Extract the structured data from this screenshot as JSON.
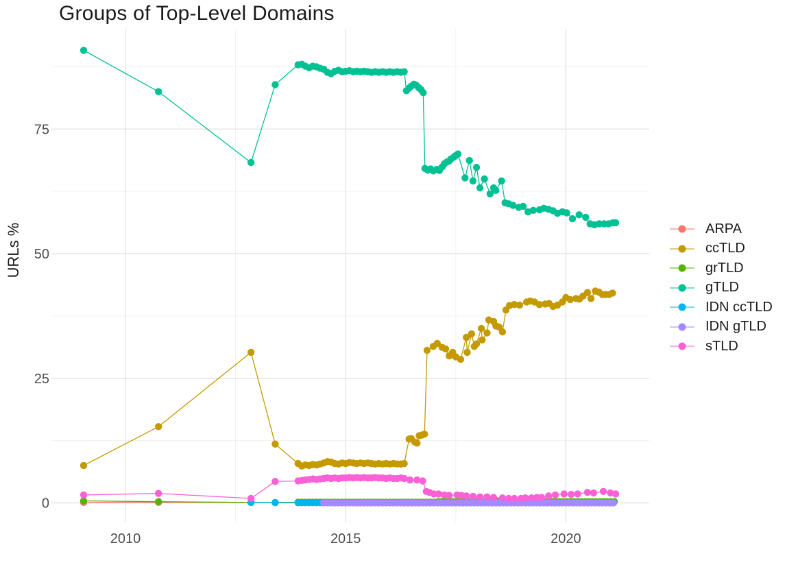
{
  "chart_data": {
    "type": "line",
    "title": "Groups of Top-Level Domains",
    "ylabel": "URLs %",
    "xlabel": "",
    "grid": "on",
    "legend_position": "right",
    "xlim": [
      2008.3,
      2021.9
    ],
    "ylim": [
      -4.5,
      95
    ],
    "x_axis": {
      "ticks": [
        {
          "label": "2010",
          "value": 2010
        },
        {
          "label": "2015",
          "value": 2015
        },
        {
          "label": "2020",
          "value": 2020
        }
      ],
      "minor": [
        2012.5,
        2017.5
      ]
    },
    "y_axis": {
      "ticks": [
        {
          "label": "0",
          "value": 0
        },
        {
          "label": "25",
          "value": 25
        },
        {
          "label": "50",
          "value": 50
        },
        {
          "label": "75",
          "value": 75
        }
      ],
      "minor": [
        12.5,
        37.5,
        62.5,
        87.5
      ]
    },
    "series": [
      {
        "name": "ARPA",
        "color": "#F8766D",
        "points": [
          [
            2009.05,
            0.1
          ],
          [
            2010.75,
            0.1
          ],
          [
            2012.85,
            0.07
          ],
          [
            2013.4,
            0.05
          ]
        ],
        "runs": [
          {
            "from": 2013.92,
            "step": 0.0833,
            "n": 87,
            "value": 0.05
          }
        ]
      },
      {
        "name": "ccTLD",
        "color": "#C49A00",
        "points": [
          [
            2009.05,
            7.5
          ],
          [
            2010.75,
            15.3
          ],
          [
            2012.85,
            30.2
          ],
          [
            2013.4,
            11.8
          ],
          [
            2016.33,
            7.9
          ],
          [
            2016.44,
            12.8
          ],
          [
            2016.49,
            12.9
          ],
          [
            2016.57,
            12.2
          ],
          [
            2016.62,
            12.0
          ],
          [
            2016.67,
            13.5
          ],
          [
            2016.73,
            13.6
          ],
          [
            2016.79,
            13.8
          ],
          [
            2016.85,
            30.6
          ],
          [
            2016.99,
            31.4
          ],
          [
            2017.08,
            32.0
          ],
          [
            2017.19,
            31.2
          ],
          [
            2017.27,
            30.9
          ],
          [
            2017.35,
            29.5
          ],
          [
            2017.43,
            30.2
          ],
          [
            2017.5,
            29.3
          ],
          [
            2017.61,
            28.8
          ],
          [
            2017.74,
            33.2
          ],
          [
            2017.76,
            30.2
          ],
          [
            2017.86,
            33.9
          ],
          [
            2017.92,
            31.4
          ],
          [
            2017.97,
            31.9
          ],
          [
            2018.08,
            35.0
          ],
          [
            2018.1,
            32.7
          ],
          [
            2018.21,
            34.1
          ],
          [
            2018.25,
            36.7
          ],
          [
            2018.36,
            36.4
          ],
          [
            2018.41,
            35.5
          ],
          [
            2018.48,
            35.3
          ],
          [
            2018.56,
            34.3
          ],
          [
            2018.64,
            38.7
          ],
          [
            2018.72,
            39.6
          ],
          [
            2018.83,
            39.8
          ],
          [
            2018.95,
            39.7
          ],
          [
            2019.11,
            40.3
          ],
          [
            2019.19,
            40.5
          ],
          [
            2019.29,
            40.3
          ],
          [
            2019.4,
            39.8
          ],
          [
            2019.53,
            39.9
          ],
          [
            2019.62,
            40.0
          ],
          [
            2019.71,
            39.4
          ],
          [
            2019.81,
            39.7
          ],
          [
            2019.92,
            40.3
          ],
          [
            2020.0,
            41.2
          ],
          [
            2020.1,
            40.8
          ],
          [
            2020.23,
            41.0
          ],
          [
            2020.31,
            40.9
          ],
          [
            2020.39,
            41.5
          ],
          [
            2020.49,
            42.2
          ],
          [
            2020.57,
            41.0
          ],
          [
            2020.67,
            42.5
          ],
          [
            2020.75,
            42.3
          ],
          [
            2020.83,
            41.8
          ],
          [
            2020.9,
            41.8
          ],
          [
            2020.98,
            41.8
          ],
          [
            2021.06,
            42.1
          ]
        ],
        "runs": [
          {
            "from": 2013.92,
            "step": 0.0833,
            "values": [
              7.9,
              7.4,
              7.6,
              7.5,
              7.7,
              7.6,
              7.8,
              8.0,
              8.3,
              8.2,
              7.9,
              7.8,
              8.0,
              7.9,
              8.1,
              8.0,
              7.9,
              8.0,
              7.9,
              8.0,
              7.9,
              7.8,
              7.9,
              7.8,
              7.9,
              7.8,
              7.9,
              7.8,
              7.8
            ]
          }
        ]
      },
      {
        "name": "grTLD",
        "color": "#53B400",
        "points": [
          [
            2009.05,
            0.4
          ],
          [
            2010.75,
            0.25
          ],
          [
            2012.85,
            0.1
          ],
          [
            2013.4,
            0.08
          ]
        ],
        "runs": [
          {
            "from": 2013.92,
            "step": 0.0833,
            "n": 38,
            "value": 0.15
          },
          {
            "from": 2017.1,
            "step": 0.0833,
            "n": 49,
            "value": 0.25
          }
        ]
      },
      {
        "name": "gTLD",
        "color": "#00C094",
        "points": [
          [
            2009.05,
            90.8
          ],
          [
            2010.75,
            82.5
          ],
          [
            2012.85,
            68.3
          ],
          [
            2013.4,
            83.9
          ],
          [
            2016.33,
            86.5
          ],
          [
            2016.38,
            82.7
          ],
          [
            2016.44,
            83.2
          ],
          [
            2016.49,
            83.6
          ],
          [
            2016.55,
            84.0
          ],
          [
            2016.6,
            83.8
          ],
          [
            2016.66,
            83.3
          ],
          [
            2016.71,
            82.9
          ],
          [
            2016.76,
            82.3
          ],
          [
            2016.8,
            67.1
          ],
          [
            2016.86,
            66.8
          ],
          [
            2016.93,
            67.0
          ],
          [
            2016.99,
            66.6
          ],
          [
            2017.07,
            66.9
          ],
          [
            2017.13,
            66.7
          ],
          [
            2017.19,
            67.4
          ],
          [
            2017.24,
            68.0
          ],
          [
            2017.3,
            68.4
          ],
          [
            2017.35,
            68.6
          ],
          [
            2017.39,
            69.0
          ],
          [
            2017.46,
            69.4
          ],
          [
            2017.5,
            69.7
          ],
          [
            2017.55,
            70.0
          ],
          [
            2017.71,
            65.2
          ],
          [
            2017.81,
            68.7
          ],
          [
            2017.89,
            64.6
          ],
          [
            2017.97,
            67.3
          ],
          [
            2018.05,
            63.2
          ],
          [
            2018.15,
            65.0
          ],
          [
            2018.28,
            62.0
          ],
          [
            2018.36,
            63.2
          ],
          [
            2018.41,
            62.7
          ],
          [
            2018.54,
            64.6
          ],
          [
            2018.62,
            60.2
          ],
          [
            2018.7,
            60.0
          ],
          [
            2018.8,
            59.7
          ],
          [
            2018.93,
            59.3
          ],
          [
            2019.03,
            59.5
          ],
          [
            2019.14,
            58.4
          ],
          [
            2019.26,
            58.7
          ],
          [
            2019.4,
            58.8
          ],
          [
            2019.5,
            59.1
          ],
          [
            2019.61,
            58.9
          ],
          [
            2019.71,
            58.6
          ],
          [
            2019.81,
            58.1
          ],
          [
            2019.92,
            58.4
          ],
          [
            2020.02,
            58.2
          ],
          [
            2020.15,
            57.0
          ],
          [
            2020.3,
            57.8
          ],
          [
            2020.45,
            57.3
          ],
          [
            2020.55,
            56.0
          ],
          [
            2020.65,
            55.8
          ],
          [
            2020.76,
            56.0
          ],
          [
            2020.87,
            56.0
          ],
          [
            2020.97,
            56.0
          ],
          [
            2021.07,
            56.2
          ],
          [
            2021.13,
            56.2
          ]
        ],
        "runs": [
          {
            "from": 2013.92,
            "step": 0.0833,
            "values": [
              87.9,
              88.0,
              87.6,
              87.3,
              87.6,
              87.5,
              87.2,
              87.0,
              86.4,
              86.1,
              86.6,
              86.8,
              86.5,
              86.6,
              86.7,
              86.5,
              86.6,
              86.5,
              86.6,
              86.5,
              86.4,
              86.5,
              86.4,
              86.5,
              86.4,
              86.5,
              86.4,
              86.5,
              86.4
            ]
          }
        ]
      },
      {
        "name": "IDN ccTLD",
        "color": "#00B6EB",
        "points": [
          [
            2012.85,
            0.1
          ],
          [
            2013.4,
            0.05
          ]
        ],
        "runs": [
          {
            "from": 2013.92,
            "step": 0.0833,
            "n": 87,
            "value": 0.04
          }
        ]
      },
      {
        "name": "IDN gTLD",
        "color": "#A58AFF",
        "points": [],
        "runs": [
          {
            "from": 2014.5,
            "step": 0.0833,
            "n": 80,
            "value": 0.02
          }
        ]
      },
      {
        "name": "sTLD",
        "color": "#FB61D7",
        "points": [
          [
            2009.05,
            1.6
          ],
          [
            2010.75,
            1.9
          ],
          [
            2012.85,
            0.9
          ],
          [
            2013.4,
            4.3
          ],
          [
            2016.33,
            4.9
          ],
          [
            2016.46,
            4.6
          ],
          [
            2016.62,
            4.6
          ],
          [
            2016.75,
            4.4
          ],
          [
            2016.83,
            2.3
          ],
          [
            2016.9,
            2.1
          ],
          [
            2017.0,
            1.8
          ],
          [
            2017.11,
            1.8
          ],
          [
            2017.24,
            1.6
          ],
          [
            2017.35,
            1.5
          ],
          [
            2017.53,
            1.6
          ],
          [
            2017.63,
            1.5
          ],
          [
            2017.74,
            1.4
          ],
          [
            2017.89,
            1.3
          ],
          [
            2018.05,
            1.2
          ],
          [
            2018.21,
            1.2
          ],
          [
            2018.36,
            1.1
          ],
          [
            2018.56,
            1.0
          ],
          [
            2018.7,
            0.9
          ],
          [
            2018.83,
            0.9
          ],
          [
            2018.98,
            0.9
          ],
          [
            2019.08,
            1.0
          ],
          [
            2019.22,
            1.0
          ],
          [
            2019.34,
            1.1
          ],
          [
            2019.45,
            1.1
          ],
          [
            2019.61,
            1.4
          ],
          [
            2019.76,
            1.6
          ],
          [
            2019.96,
            1.8
          ],
          [
            2020.12,
            1.7
          ],
          [
            2020.27,
            1.8
          ],
          [
            2020.49,
            2.1
          ],
          [
            2020.63,
            2.0
          ],
          [
            2020.85,
            2.3
          ],
          [
            2021.01,
            2.0
          ],
          [
            2021.13,
            1.8
          ]
        ],
        "runs": [
          {
            "from": 2013.92,
            "step": 0.0833,
            "values": [
              4.4,
              4.5,
              4.6,
              4.7,
              4.8,
              4.7,
              4.8,
              4.9,
              5.0,
              4.9,
              5.0,
              4.9,
              5.0,
              5.0,
              5.1,
              5.0,
              5.1,
              5.0,
              5.1,
              5.0,
              5.0,
              5.1,
              5.0,
              5.0,
              4.9,
              5.0,
              4.9,
              4.9,
              5.0
            ]
          }
        ]
      }
    ]
  }
}
